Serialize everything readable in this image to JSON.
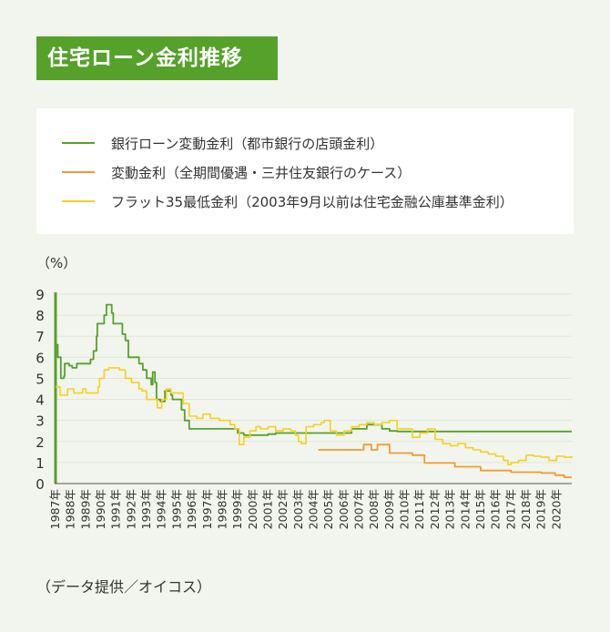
{
  "title": "住宅ローン金利推移",
  "unit_label": "（%）",
  "source": "（データ提供／オイコス）",
  "colors": {
    "background": "#f1f5ed",
    "accent": "#56a12a",
    "grid": "#dfe7d8"
  },
  "chart_data": {
    "type": "line",
    "ylim": [
      0,
      9
    ],
    "yticks": [
      0,
      1,
      2,
      3,
      4,
      5,
      6,
      7,
      8,
      9
    ],
    "xlim": [
      1987,
      2021
    ],
    "xtick_labels": [
      "1987年",
      "1988年",
      "1989年",
      "1990年",
      "1991年",
      "1992年",
      "1993年",
      "1994年",
      "1995年",
      "1996年",
      "1997年",
      "1998年",
      "1999年",
      "2000年",
      "2001年",
      "2002年",
      "2003年",
      "2004年",
      "2005年",
      "2006年",
      "2007年",
      "2008年",
      "2009年",
      "2010年",
      "2011年",
      "2012年",
      "2013年",
      "2014年",
      "2015年",
      "2016年",
      "2017年",
      "2018年",
      "2019年",
      "2020年"
    ],
    "grid": true,
    "legend_position": "top",
    "series": [
      {
        "name": "銀行ローン変動金利（都市銀行の店頭金利）",
        "color": "#56a12a",
        "step": true,
        "points": [
          [
            1987.0,
            6.6
          ],
          [
            1987.15,
            6.0
          ],
          [
            1987.35,
            5.0
          ],
          [
            1987.55,
            5.1
          ],
          [
            1987.6,
            5.7
          ],
          [
            1987.9,
            5.6
          ],
          [
            1988.1,
            5.5
          ],
          [
            1988.4,
            5.7
          ],
          [
            1989.3,
            5.9
          ],
          [
            1989.5,
            6.3
          ],
          [
            1989.7,
            7.0
          ],
          [
            1989.75,
            7.6
          ],
          [
            1990.2,
            8.0
          ],
          [
            1990.35,
            8.5
          ],
          [
            1990.7,
            8.1
          ],
          [
            1990.8,
            7.6
          ],
          [
            1991.4,
            7.1
          ],
          [
            1991.6,
            6.8
          ],
          [
            1991.8,
            6.0
          ],
          [
            1992.3,
            6.0
          ],
          [
            1992.5,
            5.7
          ],
          [
            1992.75,
            5.4
          ],
          [
            1993.0,
            5.0
          ],
          [
            1993.3,
            4.7
          ],
          [
            1993.4,
            5.3
          ],
          [
            1993.55,
            4.8
          ],
          [
            1993.65,
            4.0
          ],
          [
            1993.9,
            3.9
          ],
          [
            1994.2,
            4.4
          ],
          [
            1994.6,
            4.2
          ],
          [
            1994.7,
            4.0
          ],
          [
            1995.3,
            3.5
          ],
          [
            1995.5,
            3.0
          ],
          [
            1995.8,
            2.6
          ],
          [
            1996.3,
            2.6
          ],
          [
            1999.0,
            2.4
          ],
          [
            1999.4,
            2.3
          ],
          [
            2001.0,
            2.35
          ],
          [
            2001.5,
            2.4
          ],
          [
            2002.0,
            2.4
          ],
          [
            2006.5,
            2.6
          ],
          [
            2007.5,
            2.8
          ],
          [
            2008.5,
            2.6
          ],
          [
            2009.0,
            2.5
          ],
          [
            2009.5,
            2.475
          ],
          [
            2021.0,
            2.475
          ]
        ]
      },
      {
        "name": "変動金利（全期間優遇・三井住友銀行のケース）",
        "color": "#f39a2f",
        "step": true,
        "points": [
          [
            2004.3,
            1.6
          ],
          [
            2007.3,
            1.85
          ],
          [
            2007.8,
            1.6
          ],
          [
            2008.2,
            1.85
          ],
          [
            2009.0,
            1.45
          ],
          [
            2010.5,
            1.35
          ],
          [
            2011.3,
            0.98
          ],
          [
            2013.3,
            0.8
          ],
          [
            2015.0,
            0.62
          ],
          [
            2017.0,
            0.54
          ],
          [
            2019.0,
            0.5
          ],
          [
            2019.9,
            0.4
          ],
          [
            2020.5,
            0.3
          ],
          [
            2021.0,
            0.3
          ]
        ]
      },
      {
        "name": "フラット35最低金利（2003年9月以前は住宅金融公庫基準金利）",
        "color": "#f6d021",
        "step": true,
        "points": [
          [
            1987.0,
            4.6
          ],
          [
            1987.3,
            4.2
          ],
          [
            1987.8,
            4.5
          ],
          [
            1988.2,
            4.3
          ],
          [
            1988.8,
            4.5
          ],
          [
            1989.0,
            4.3
          ],
          [
            1989.8,
            4.6
          ],
          [
            1989.9,
            5.0
          ],
          [
            1990.2,
            5.4
          ],
          [
            1990.5,
            5.5
          ],
          [
            1991.2,
            5.4
          ],
          [
            1991.6,
            5.0
          ],
          [
            1992.0,
            4.8
          ],
          [
            1992.5,
            4.5
          ],
          [
            1992.7,
            4.4
          ],
          [
            1993.0,
            4.0
          ],
          [
            1993.7,
            3.6
          ],
          [
            1994.0,
            4.0
          ],
          [
            1994.3,
            4.5
          ],
          [
            1994.6,
            4.3
          ],
          [
            1995.1,
            4.3
          ],
          [
            1995.4,
            3.8
          ],
          [
            1995.8,
            3.2
          ],
          [
            1996.3,
            3.1
          ],
          [
            1996.7,
            3.3
          ],
          [
            1997.2,
            3.1
          ],
          [
            1997.8,
            3.0
          ],
          [
            1998.5,
            2.8
          ],
          [
            1998.8,
            2.6
          ],
          [
            1999.1,
            1.85
          ],
          [
            1999.4,
            2.2
          ],
          [
            1999.8,
            2.5
          ],
          [
            2000.2,
            2.7
          ],
          [
            2000.5,
            2.6
          ],
          [
            2001.0,
            2.7
          ],
          [
            2001.5,
            2.5
          ],
          [
            2002.0,
            2.6
          ],
          [
            2002.5,
            2.5
          ],
          [
            2002.8,
            2.3
          ],
          [
            2003.0,
            2.0
          ],
          [
            2003.2,
            1.9
          ],
          [
            2003.5,
            2.7
          ],
          [
            2004.0,
            2.8
          ],
          [
            2004.5,
            2.9
          ],
          [
            2004.7,
            3.0
          ],
          [
            2005.1,
            2.5
          ],
          [
            2005.5,
            2.3
          ],
          [
            2006.0,
            2.5
          ],
          [
            2006.5,
            2.7
          ],
          [
            2007.0,
            2.8
          ],
          [
            2007.5,
            2.9
          ],
          [
            2008.0,
            2.8
          ],
          [
            2008.5,
            2.9
          ],
          [
            2009.0,
            3.0
          ],
          [
            2009.5,
            2.6
          ],
          [
            2010.2,
            2.6
          ],
          [
            2010.5,
            2.2
          ],
          [
            2011.0,
            2.4
          ],
          [
            2011.5,
            2.6
          ],
          [
            2012.0,
            2.1
          ],
          [
            2012.5,
            1.9
          ],
          [
            2013.0,
            1.8
          ],
          [
            2013.5,
            1.9
          ],
          [
            2014.0,
            1.7
          ],
          [
            2014.5,
            1.6
          ],
          [
            2015.0,
            1.5
          ],
          [
            2015.5,
            1.4
          ],
          [
            2016.0,
            1.3
          ],
          [
            2016.5,
            1.1
          ],
          [
            2016.8,
            0.9
          ],
          [
            2017.0,
            1.0
          ],
          [
            2017.5,
            1.1
          ],
          [
            2018.0,
            1.35
          ],
          [
            2018.5,
            1.3
          ],
          [
            2019.0,
            1.25
          ],
          [
            2019.5,
            1.1
          ],
          [
            2020.0,
            1.3
          ],
          [
            2020.5,
            1.25
          ],
          [
            2021.0,
            1.3
          ]
        ]
      }
    ]
  }
}
